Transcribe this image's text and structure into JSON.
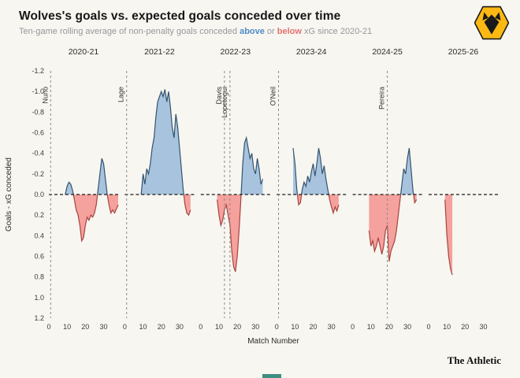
{
  "header": {
    "title": "Wolves's goals vs. expected goals conceded over time",
    "subtitle": {
      "prefix": "Ten-game rolling average of non-penalty goals conceded ",
      "above_word": "above",
      "mid": " or ",
      "below_word": "below",
      "suffix": " xG since 2020-21"
    }
  },
  "footer": {
    "brand": "The Athletic"
  },
  "chart_data": {
    "type": "area",
    "title": "Wolves's goals vs. expected goals conceded over time",
    "xlabel": "Match Number",
    "ylabel": "Goals - xG conceded",
    "y_axis_inverted": true,
    "ylim": [
      -1.2,
      1.2
    ],
    "xlim": [
      0,
      38
    ],
    "y_ticks": [
      -1.2,
      -1.0,
      -0.8,
      -0.6,
      -0.4,
      -0.2,
      0.0,
      0.2,
      0.4,
      0.6,
      0.8,
      1.0,
      1.2
    ],
    "x_ticks": [
      0,
      10,
      20,
      30
    ],
    "colors": {
      "above_fill": "#a8c3de",
      "above_line": "#33536f",
      "below_fill": "#f5a19d",
      "below_line": "#a8433f",
      "zero_line": "#1a1a1a",
      "manager_line": "#8a8a8a",
      "gold": "#FDB913"
    },
    "facets": [
      {
        "season": "2020-21",
        "managers": [
          {
            "label": "Nuno",
            "x": 1
          }
        ],
        "points": [
          [
            9,
            0
          ],
          [
            10,
            -0.08
          ],
          [
            11,
            -0.12
          ],
          [
            12,
            -0.1
          ],
          [
            13,
            -0.04
          ],
          [
            14,
            0.05
          ],
          [
            15,
            0.15
          ],
          [
            16,
            0.2
          ],
          [
            17,
            0.3
          ],
          [
            18,
            0.45
          ],
          [
            19,
            0.42
          ],
          [
            20,
            0.3
          ],
          [
            21,
            0.22
          ],
          [
            22,
            0.25
          ],
          [
            23,
            0.2
          ],
          [
            24,
            0.22
          ],
          [
            25,
            0.18
          ],
          [
            26,
            0.1
          ],
          [
            27,
            -0.05
          ],
          [
            28,
            -0.2
          ],
          [
            29,
            -0.35
          ],
          [
            30,
            -0.3
          ],
          [
            31,
            -0.15
          ],
          [
            32,
            0
          ],
          [
            33,
            0.1
          ],
          [
            34,
            0.18
          ],
          [
            35,
            0.15
          ],
          [
            36,
            0.18
          ],
          [
            37,
            0.14
          ],
          [
            38,
            0.1
          ]
        ]
      },
      {
        "season": "2021-22",
        "managers": [
          {
            "label": "Lage",
            "x": 1
          }
        ],
        "points": [
          [
            9,
            0
          ],
          [
            10,
            -0.2
          ],
          [
            11,
            -0.1
          ],
          [
            12,
            -0.25
          ],
          [
            13,
            -0.2
          ],
          [
            14,
            -0.3
          ],
          [
            15,
            -0.45
          ],
          [
            16,
            -0.55
          ],
          [
            17,
            -0.75
          ],
          [
            18,
            -0.9
          ],
          [
            19,
            -0.95
          ],
          [
            20,
            -1.0
          ],
          [
            21,
            -0.95
          ],
          [
            22,
            -1.02
          ],
          [
            23,
            -0.9
          ],
          [
            24,
            -1.0
          ],
          [
            25,
            -0.85
          ],
          [
            26,
            -0.65
          ],
          [
            27,
            -0.55
          ],
          [
            28,
            -0.78
          ],
          [
            29,
            -0.65
          ],
          [
            30,
            -0.45
          ],
          [
            31,
            -0.25
          ],
          [
            32,
            -0.05
          ],
          [
            33,
            0.1
          ],
          [
            34,
            0.18
          ],
          [
            35,
            0.2
          ],
          [
            36,
            0.15
          ]
        ]
      },
      {
        "season": "2022-23",
        "managers": [
          {
            "label": "Davis",
            "x": 13
          },
          {
            "label": "Lopetegui",
            "x": 16
          }
        ],
        "points": [
          [
            9,
            0.05
          ],
          [
            10,
            0.2
          ],
          [
            11,
            0.3
          ],
          [
            12,
            0.25
          ],
          [
            13,
            0.15
          ],
          [
            14,
            0.1
          ],
          [
            15,
            0.2
          ],
          [
            16,
            0.3
          ],
          [
            17,
            0.55
          ],
          [
            18,
            0.7
          ],
          [
            19,
            0.75
          ],
          [
            20,
            0.6
          ],
          [
            21,
            0.35
          ],
          [
            22,
            0.05
          ],
          [
            23,
            -0.3
          ],
          [
            24,
            -0.5
          ],
          [
            25,
            -0.55
          ],
          [
            26,
            -0.45
          ],
          [
            27,
            -0.35
          ],
          [
            28,
            -0.4
          ],
          [
            29,
            -0.25
          ],
          [
            30,
            -0.2
          ],
          [
            31,
            -0.35
          ],
          [
            32,
            -0.25
          ],
          [
            33,
            -0.1
          ],
          [
            34,
            -0.15
          ]
        ]
      },
      {
        "season": "2023-24",
        "managers": [
          {
            "label": "O'Neil",
            "x": 1
          }
        ],
        "points": [
          [
            9,
            -0.45
          ],
          [
            10,
            -0.3
          ],
          [
            11,
            -0.05
          ],
          [
            12,
            0.1
          ],
          [
            13,
            0.08
          ],
          [
            14,
            -0.05
          ],
          [
            15,
            -0.12
          ],
          [
            16,
            -0.08
          ],
          [
            17,
            -0.18
          ],
          [
            18,
            -0.12
          ],
          [
            19,
            -0.22
          ],
          [
            20,
            -0.3
          ],
          [
            21,
            -0.18
          ],
          [
            22,
            -0.3
          ],
          [
            23,
            -0.45
          ],
          [
            24,
            -0.35
          ],
          [
            25,
            -0.2
          ],
          [
            26,
            -0.28
          ],
          [
            27,
            -0.15
          ],
          [
            28,
            -0.05
          ],
          [
            29,
            0.05
          ],
          [
            30,
            0.12
          ],
          [
            31,
            0.18
          ],
          [
            32,
            0.12
          ],
          [
            33,
            0.16
          ],
          [
            34,
            0.1
          ]
        ]
      },
      {
        "season": "2024-25",
        "managers": [
          {
            "label": "Pereira",
            "x": 19
          }
        ],
        "points": [
          [
            9,
            0.35
          ],
          [
            10,
            0.5
          ],
          [
            11,
            0.45
          ],
          [
            12,
            0.55
          ],
          [
            13,
            0.5
          ],
          [
            14,
            0.42
          ],
          [
            15,
            0.5
          ],
          [
            16,
            0.58
          ],
          [
            17,
            0.5
          ],
          [
            18,
            0.35
          ],
          [
            19,
            0.3
          ],
          [
            20,
            0.65
          ],
          [
            21,
            0.55
          ],
          [
            22,
            0.5
          ],
          [
            23,
            0.45
          ],
          [
            24,
            0.35
          ],
          [
            25,
            0.2
          ],
          [
            26,
            0.05
          ],
          [
            27,
            -0.1
          ],
          [
            28,
            -0.25
          ],
          [
            29,
            -0.2
          ],
          [
            30,
            -0.35
          ],
          [
            31,
            -0.45
          ],
          [
            32,
            -0.25
          ],
          [
            33,
            -0.05
          ],
          [
            34,
            0.08
          ],
          [
            35,
            0.05
          ]
        ]
      },
      {
        "season": "2025-26",
        "managers": [],
        "points": [
          [
            9,
            0.05
          ],
          [
            10,
            0.4
          ],
          [
            11,
            0.6
          ],
          [
            12,
            0.72
          ],
          [
            13,
            0.78
          ]
        ]
      }
    ]
  }
}
